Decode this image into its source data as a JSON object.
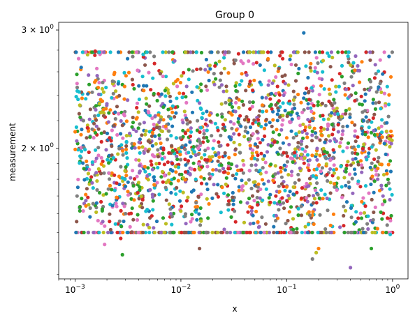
{
  "chart_data": {
    "type": "scatter",
    "title": "Group 0",
    "xlabel": "x",
    "ylabel": "measurement",
    "xscale": "log",
    "yscale": "log",
    "xlim": [
      0.0007,
      1.4
    ],
    "ylim": [
      1.28,
      3.08
    ],
    "grid": false,
    "legend": "none",
    "x_ticks": [
      {
        "value": 0.001,
        "base": "10",
        "exp": "−3"
      },
      {
        "value": 0.01,
        "base": "10",
        "exp": "−2"
      },
      {
        "value": 0.1,
        "base": "10",
        "exp": "−1"
      },
      {
        "value": 1,
        "base": "10",
        "exp": "0"
      }
    ],
    "y_ticks": [
      {
        "value": 2,
        "coef": "2",
        "base": "10",
        "exp": "0"
      },
      {
        "value": 3,
        "coef": "3",
        "base": "10",
        "exp": "0"
      }
    ],
    "palette": [
      "#1f77b4",
      "#ff7f0e",
      "#2ca02c",
      "#d62728",
      "#9467bd",
      "#8c564b",
      "#e377c2",
      "#7f7f7f",
      "#bcbd22",
      "#17becf"
    ],
    "notable_points": [
      {
        "x": 0.145,
        "y": 2.97
      },
      {
        "x": 0.00155,
        "y": 2.79
      },
      {
        "x": 0.00108,
        "y": 2.72
      },
      {
        "x": 0.0044,
        "y": 2.76
      },
      {
        "x": 0.0028,
        "y": 1.39
      },
      {
        "x": 0.015,
        "y": 1.42
      },
      {
        "x": 0.19,
        "y": 1.4
      },
      {
        "x": 0.2,
        "y": 1.42
      },
      {
        "x": 0.4,
        "y": 1.33
      },
      {
        "x": 0.175,
        "y": 1.37
      },
      {
        "x": 0.00102,
        "y": 1.5
      },
      {
        "x": 0.0027,
        "y": 1.47
      },
      {
        "x": 0.0019,
        "y": 1.44
      },
      {
        "x": 0.95,
        "y": 1.49
      },
      {
        "x": 0.63,
        "y": 1.42
      },
      {
        "x": 0.125,
        "y": 1.5
      },
      {
        "x": 0.15,
        "y": 1.53
      },
      {
        "x": 0.72,
        "y": 1.52
      },
      {
        "x": 0.055,
        "y": 1.53
      },
      {
        "x": 0.003,
        "y": 1.6
      }
    ],
    "cloud": {
      "n_points": 2200,
      "x_range": [
        0.001,
        1.0
      ],
      "y_center": 2.0,
      "y_log_sigma": 0.085
    }
  }
}
